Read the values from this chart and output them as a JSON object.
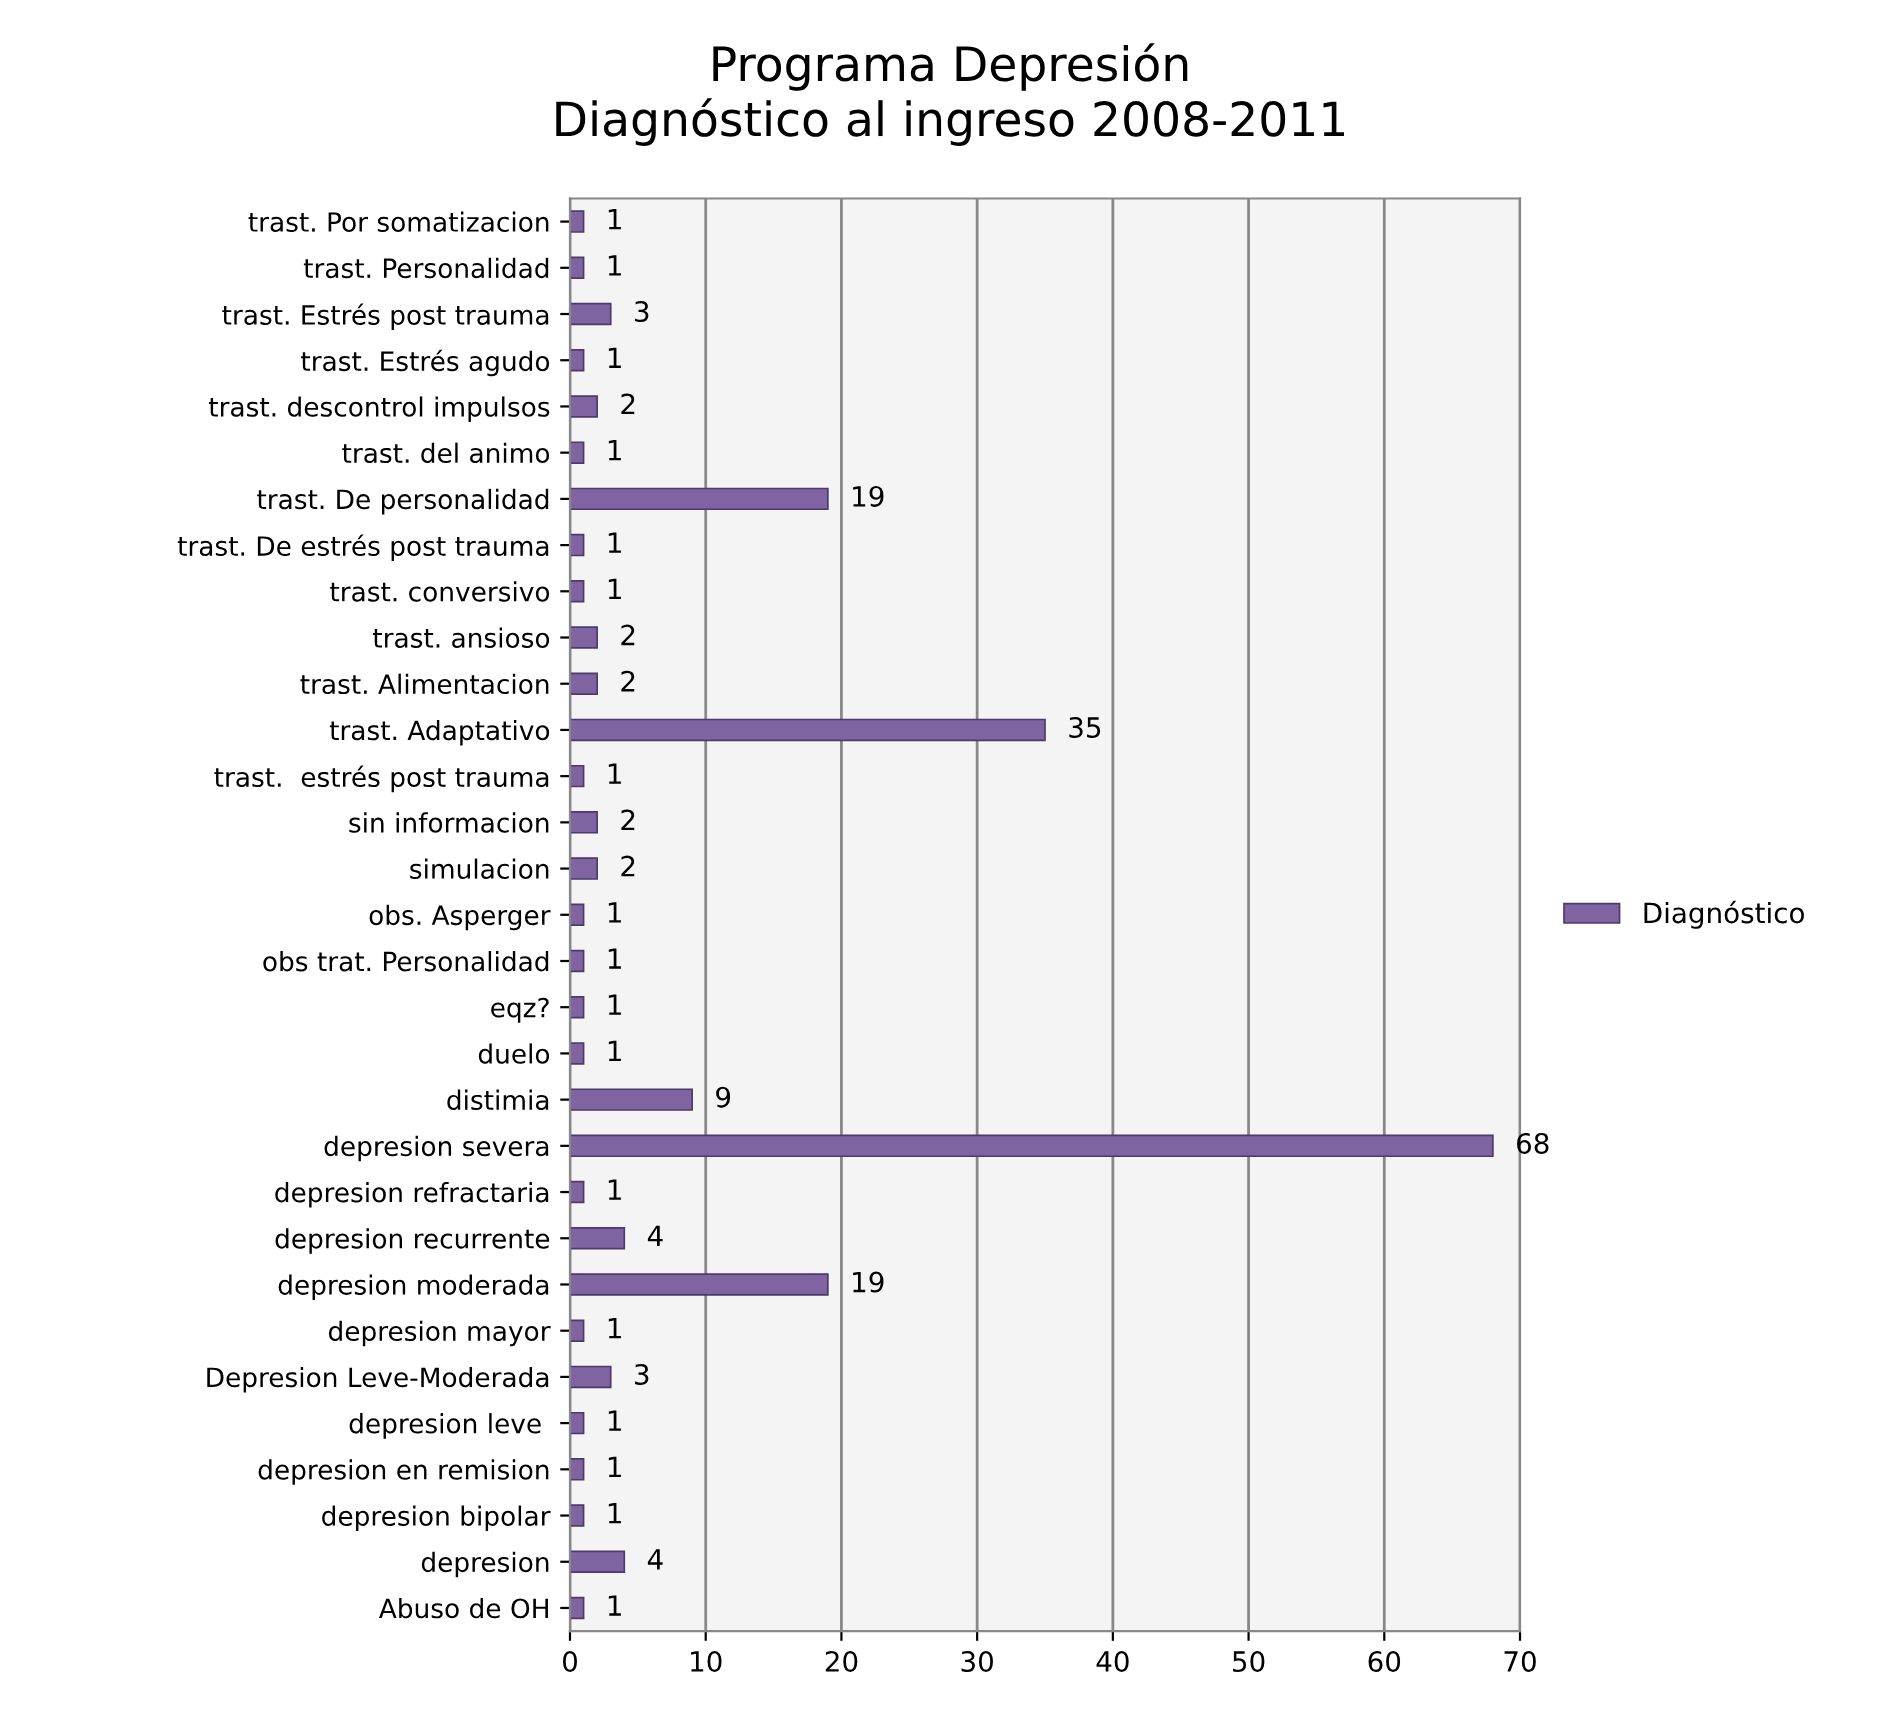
{
  "chart_data": {
    "type": "bar",
    "orientation": "horizontal",
    "title": "Programa Depresión\nDiagnóstico al ingreso 2008-2011",
    "categories": [
      "trast. Por somatizacion",
      "trast. Personalidad",
      "trast. Estrés post trauma",
      "trast. Estrés agudo",
      "trast. descontrol impulsos",
      "trast. del animo",
      "trast. De personalidad",
      "trast. De estrés post trauma",
      "trast. conversivo",
      "trast. ansioso",
      "trast. Alimentacion",
      "trast. Adaptativo",
      "trast.  estrés post trauma",
      "sin informacion",
      "simulacion",
      "obs. Asperger",
      "obs trat. Personalidad",
      "eqz?",
      "duelo",
      "distimia",
      "depresion severa",
      "depresion refractaria",
      "depresion recurrente",
      "depresion moderada",
      "depresion mayor",
      "Depresion Leve-Moderada",
      "depresion leve ",
      "depresion en remision",
      "depresion bipolar",
      "depresion",
      "Abuso de OH"
    ],
    "series": [
      {
        "name": "Diagnóstico",
        "color": "#8064a2",
        "values": [
          1,
          1,
          3,
          1,
          2,
          1,
          19,
          1,
          1,
          2,
          2,
          35,
          1,
          2,
          2,
          1,
          1,
          1,
          1,
          9,
          68,
          1,
          4,
          19,
          1,
          3,
          1,
          1,
          1,
          4,
          1
        ]
      }
    ],
    "xlim": [
      0,
      70
    ],
    "xticks": [
      0,
      10,
      20,
      30,
      40,
      50,
      60,
      70
    ],
    "grid": "x",
    "legend": "right",
    "data_labels": true
  }
}
